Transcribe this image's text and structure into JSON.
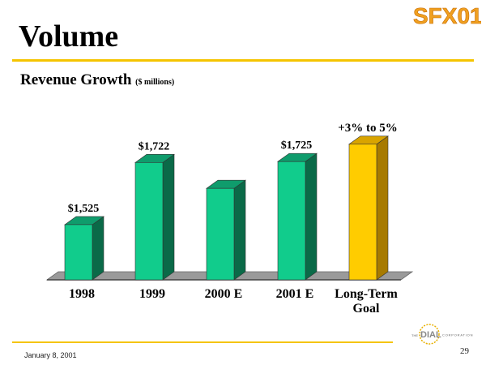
{
  "header": {
    "logo_text": "SFX01",
    "title": "Volume",
    "subtitle": "Revenue Growth",
    "subtitle_units": "($ millions)"
  },
  "chart_data": {
    "type": "bar",
    "categories": [
      "1998",
      "1999",
      "2000 E",
      "2001 E",
      "Long-Term Goal"
    ],
    "values": [
      1525,
      1722,
      1640,
      1725,
      1780
    ],
    "data_labels": [
      "$1,525",
      "$1,722",
      "",
      "$1,725",
      "+3% to 5%"
    ],
    "ylim": [
      1350,
      1800
    ],
    "grid": false,
    "legend": "none",
    "colors": {
      "bar_front": "#11cc8c",
      "bar_top": "#0f9c6c",
      "bar_side": "#0a6a48",
      "highlight_front": "#ffcc00",
      "highlight_top": "#d9a400",
      "highlight_side": "#a77a00",
      "floor": "#9a9a9a",
      "floor_edge": "#666666"
    }
  },
  "footer": {
    "date": "January 8, 2001",
    "page_number": "29",
    "brand_small": "THE",
    "brand": "DIAL",
    "brand_suffix": "CORPORATION"
  }
}
